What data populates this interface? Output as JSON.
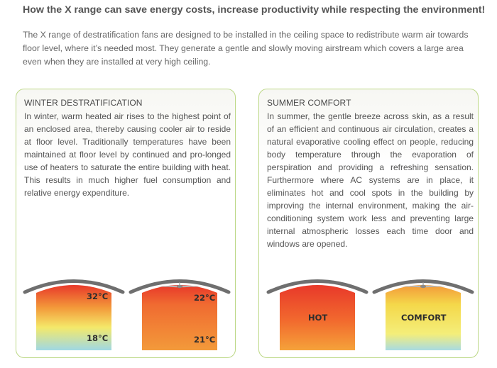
{
  "heading": "How the X range can save energy costs, increase productivity while respecting the environment!",
  "intro": "The X range of destratification fans  are designed to be installed in the ceiling space to redistribute warm air towards floor level, where it’s needed most. They generate a gentle and slowly moving airstream which covers a large area even when they are installed at very high ceiling.",
  "winter": {
    "title": "WINTER DESTRATIFICATION",
    "body": "In winter, warm heated air rises to the highest point of an enclosed area, thereby causing cooler air to reside at floor level. Traditionally temperatures have been maintained at floor level by continued and pro-longed use of heaters to saturate the entire building with heat. This results in much higher fuel consumption and relative energy expenditure.",
    "room_without_fan": {
      "top_temp": "32°C",
      "bottom_temp": "18°C"
    },
    "room_with_fan": {
      "top_temp": "22°C",
      "bottom_temp": "21°C"
    }
  },
  "summer": {
    "title": "SUMMER COMFORT",
    "body": "In summer, the gentle breeze across skin, as a result of an efficient and continuous air circulation, creates a natural evaporative cooling effect on people, reducing body temperature through the evaporation of perspiration and providing a refreshing sensation. Furthermore where AC systems are in place, it eliminates hot and cool spots in the building by improving the internal environment, making the air-conditioning system work less and preventing large internal atmospheric losses each time door and windows are opened.",
    "room_without_fan": {
      "label": "HOT"
    },
    "room_with_fan": {
      "label": "COMFORT"
    }
  },
  "colors": {
    "panel_border": "#bcd886",
    "roof": "#6f6f6f",
    "hot_red": "#e8392a",
    "warm_orange": "#f39a3a",
    "mild_yellow": "#f4e96a",
    "cool_cyan": "#9fd8e4"
  },
  "icons": [
    "ceiling-fan-icon"
  ]
}
